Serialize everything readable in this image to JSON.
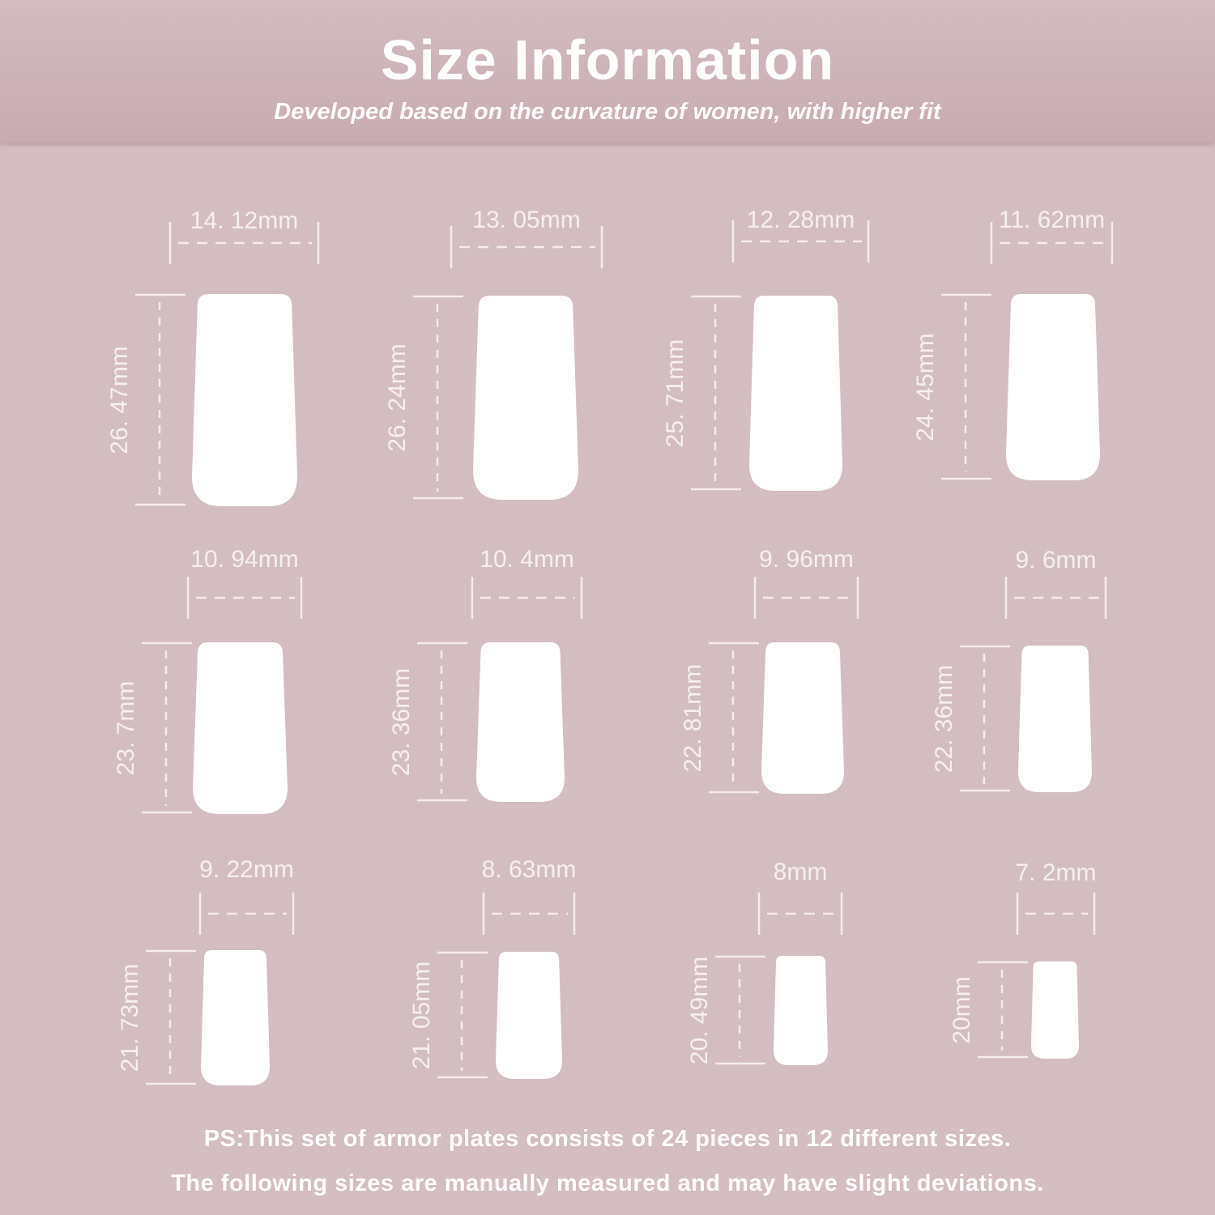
{
  "header": {
    "title": "Size Information",
    "subtitle": "Developed based on the curvature of women, with higher fit"
  },
  "nails": [
    {
      "width": "14. 12mm",
      "length": "26. 47mm"
    },
    {
      "width": "13. 05mm",
      "length": "26. 24mm"
    },
    {
      "width": "12. 28mm",
      "length": "25. 71mm"
    },
    {
      "width": "11. 62mm",
      "length": "24. 45mm"
    },
    {
      "width": "10. 94mm",
      "length": "23. 7mm"
    },
    {
      "width": "10. 4mm",
      "length": "23. 36mm"
    },
    {
      "width": "9. 96mm",
      "length": "22. 81mm"
    },
    {
      "width": "9. 6mm",
      "length": "22. 36mm"
    },
    {
      "width": "9. 22mm",
      "length": "21. 73mm"
    },
    {
      "width": "8. 63mm",
      "length": "21. 05mm"
    },
    {
      "width": "8mm",
      "length": "20. 49mm"
    },
    {
      "width": "7. 2mm",
      "length": "20mm"
    }
  ],
  "notes": [
    "PS:This set of armor plates consists of 24 pieces in 12 different sizes.",
    "The following sizes are manually measured and may have slight deviations."
  ],
  "colors": {
    "background": "#d3bdc0",
    "header": "#c8abb1",
    "nail": "#ffffff",
    "text": "#ffffff"
  }
}
